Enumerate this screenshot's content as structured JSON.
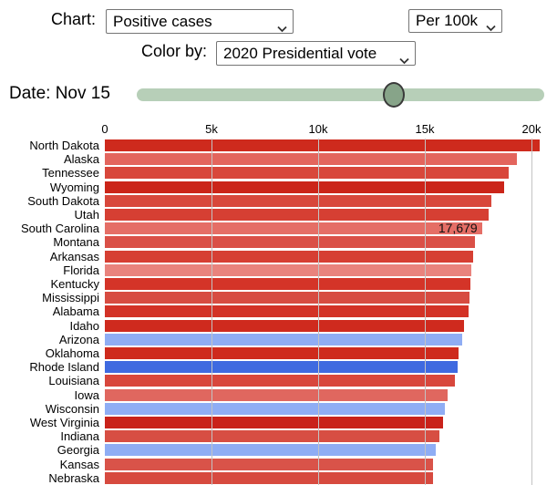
{
  "controls": {
    "chart_label": "Chart:",
    "chart_value": "Positive cases",
    "unit_value": "Per 100k",
    "color_by_label": "Color by:",
    "color_by_value": "2020 Presidential vote",
    "date_label": "Date: Nov 15"
  },
  "slider": {
    "percent": 63
  },
  "colors": {
    "track": "#b7cfb8",
    "handle": "#87a489",
    "gridline": "#c3c3c3"
  },
  "chart_data": {
    "type": "bar",
    "orientation": "horizontal",
    "title": "Positive cases per 100k by state, colored by 2020 Presidential vote",
    "xlabel": "",
    "ylabel": "",
    "xlim": [
      0,
      20000
    ],
    "grid": true,
    "x_ticks": [
      {
        "label": "0",
        "value": 0
      },
      {
        "label": "5k",
        "value": 5000
      },
      {
        "label": "10k",
        "value": 10000
      },
      {
        "label": "15k",
        "value": 15000
      },
      {
        "label": "20k",
        "value": 20000
      }
    ],
    "annotation": {
      "state": "South Carolina",
      "text": "17,679"
    },
    "bars": [
      {
        "state": "North Dakota",
        "value": 20400,
        "color": "#ce2a1d"
      },
      {
        "state": "Alaska",
        "value": 19300,
        "color": "#e3655d"
      },
      {
        "state": "Tennessee",
        "value": 18950,
        "color": "#d8473b"
      },
      {
        "state": "Wyoming",
        "value": 18700,
        "color": "#cb2519"
      },
      {
        "state": "South Dakota",
        "value": 18100,
        "color": "#d8473b"
      },
      {
        "state": "Utah",
        "value": 18000,
        "color": "#d63f33"
      },
      {
        "state": "South Carolina",
        "value": 17679,
        "color": "#e56e66"
      },
      {
        "state": "Montana",
        "value": 17350,
        "color": "#da5047"
      },
      {
        "state": "Arkansas",
        "value": 17250,
        "color": "#d63f33"
      },
      {
        "state": "Florida",
        "value": 17200,
        "color": "#e9837d"
      },
      {
        "state": "Kentucky",
        "value": 17150,
        "color": "#d43428"
      },
      {
        "state": "Mississippi",
        "value": 17100,
        "color": "#d74c41"
      },
      {
        "state": "Alabama",
        "value": 17050,
        "color": "#d33226"
      },
      {
        "state": "Idaho",
        "value": 16850,
        "color": "#cf2a1e"
      },
      {
        "state": "Arizona",
        "value": 16750,
        "color": "#8fadf4"
      },
      {
        "state": "Oklahoma",
        "value": 16600,
        "color": "#ce2a1d"
      },
      {
        "state": "Rhode Island",
        "value": 16550,
        "color": "#3f6ae0"
      },
      {
        "state": "Louisiana",
        "value": 16400,
        "color": "#d8473c"
      },
      {
        "state": "Iowa",
        "value": 16050,
        "color": "#e0675f"
      },
      {
        "state": "Wisconsin",
        "value": 15950,
        "color": "#8fadf4"
      },
      {
        "state": "West Virginia",
        "value": 15850,
        "color": "#c9221a"
      },
      {
        "state": "Indiana",
        "value": 15700,
        "color": "#d74e43"
      },
      {
        "state": "Georgia",
        "value": 15500,
        "color": "#8fadf4"
      },
      {
        "state": "Kansas",
        "value": 15400,
        "color": "#d95349"
      },
      {
        "state": "Nebraska",
        "value": 15380,
        "color": "#d74a3f"
      }
    ]
  }
}
